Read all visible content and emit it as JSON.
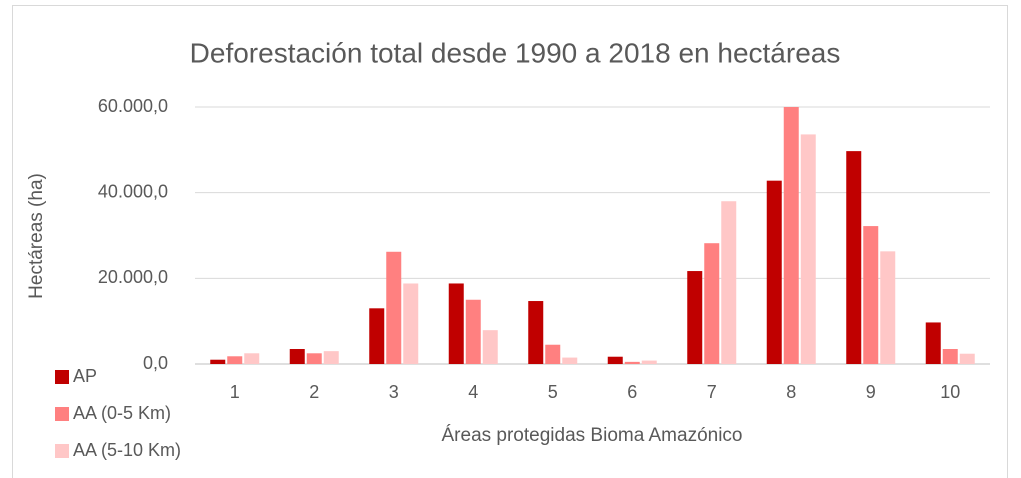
{
  "chart_data": {
    "type": "bar",
    "title": "Deforestación total desde 1990 a 2018 en hectáreas",
    "x_label": "Áreas protegidas Bioma Amazónico",
    "y_label": "Hectáreas (ha)",
    "categories": [
      "1",
      "2",
      "3",
      "4",
      "5",
      "6",
      "7",
      "8",
      "9",
      "10"
    ],
    "series": [
      {
        "name": "AP",
        "color": "#c00000",
        "values": [
          1000,
          3500,
          13000,
          18800,
          14700,
          1700,
          21700,
          42800,
          49700,
          9700
        ]
      },
      {
        "name": "AA (0-5 Km)",
        "color": "#ff8080",
        "values": [
          1800,
          2500,
          26200,
          15000,
          4500,
          500,
          28200,
          60000,
          32200,
          3500
        ]
      },
      {
        "name": "AA (5-10 Km)",
        "color": "#ffc7c7",
        "values": [
          2500,
          3000,
          18800,
          7900,
          1500,
          800,
          38000,
          53600,
          26300,
          2400
        ]
      }
    ],
    "ylim": [
      0,
      60000
    ],
    "yticks": [
      {
        "value": 0,
        "label": "0,0"
      },
      {
        "value": 20000,
        "label": "20.000,0"
      },
      {
        "value": 40000,
        "label": "40.000,0"
      },
      {
        "value": 60000,
        "label": "60.000,0"
      }
    ],
    "grid": true,
    "legend": "bottom-left"
  }
}
